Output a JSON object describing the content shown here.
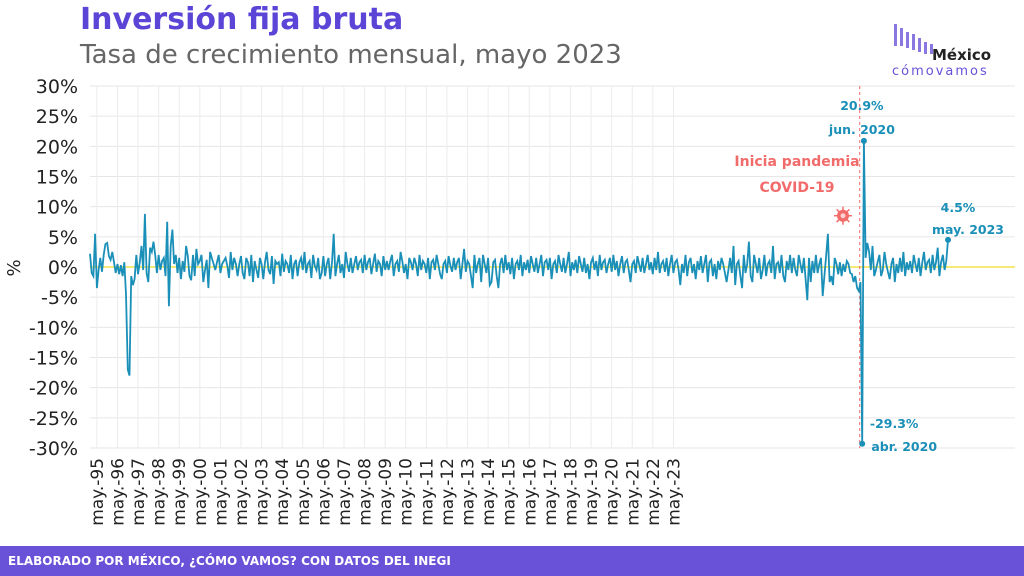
{
  "header": {
    "title": "Inversión fija bruta",
    "subtitle": "Tasa de crecimiento mensual, mayo 2023"
  },
  "logo": {
    "line1": "México",
    "line2": "cómovamos"
  },
  "footer": {
    "text": "ELABORADO POR MÉXICO, ¿CÓMO VAMOS? CON DATOS DEL INEGI"
  },
  "colors": {
    "title": "#5b45d6",
    "line": "#1a8fb8",
    "zero_line": "#f2e24a",
    "pandemic": "#f26b6b",
    "footer": "#6a52d8"
  },
  "chart_data": {
    "type": "line",
    "ylabel": "%",
    "xlabel": "",
    "ylim": [
      -30,
      30
    ],
    "y_ticks": [
      "30%",
      "25%",
      "20%",
      "15%",
      "10%",
      "5%",
      "0%",
      "-5%",
      "-10%",
      "-15%",
      "-20%",
      "-25%",
      "-30%"
    ],
    "x_tick_labels": [
      "may.-95",
      "may.-96",
      "may.-97",
      "may.-98",
      "may.-99",
      "may.-00",
      "may.-01",
      "may.-02",
      "may.-03",
      "may.-04",
      "may.-05",
      "may.-06",
      "may.-07",
      "may.-08",
      "may.-09",
      "may.-10",
      "may.-11",
      "may.-12",
      "may.-13",
      "may.-14",
      "may.-15",
      "may.-16",
      "may.-17",
      "may.-18",
      "may.-19",
      "may.-20",
      "may.-21",
      "may.-22",
      "may.-23"
    ],
    "grid": true,
    "series": [
      {
        "values": [
          2.2,
          -1.0,
          -1.5,
          5.5,
          -3.5,
          -0.5,
          1.5,
          -0.8,
          2.0,
          3.8,
          4.0,
          1.8,
          1.2,
          2.5,
          0.8,
          -1.0,
          0.5,
          -1.2,
          0.3,
          -1.5,
          0.8,
          -4.5,
          -17.0,
          -18.0,
          -1.5,
          -3.0,
          -2.0,
          2.0,
          -1.2,
          0.8,
          3.5,
          -0.5,
          8.8,
          -1.0,
          -2.5,
          3.2,
          2.5,
          4.2,
          2.0,
          -1.0,
          2.0,
          -0.5,
          1.0,
          1.5,
          -1.5,
          7.5,
          -6.5,
          3.5,
          6.2,
          0.5,
          2.0,
          -1.0,
          1.5,
          -2.0,
          1.0,
          -0.8,
          3.5,
          1.8,
          -1.5,
          -2.2,
          2.0,
          -1.5,
          3.0,
          0.5,
          1.0,
          2.0,
          -2.5,
          -0.5,
          1.2,
          -3.5,
          2.5,
          1.5,
          0.5,
          -0.5,
          0.8,
          2.0,
          -1.0,
          0.5,
          1.0,
          1.5,
          0.2,
          -1.8,
          2.5,
          -0.5,
          1.5,
          0.5,
          -1.5,
          0.5,
          1.8,
          -1.0,
          -2.0,
          1.5,
          0.8,
          -1.5,
          2.0,
          -2.5,
          1.0,
          -0.5,
          -1.8,
          1.5,
          0.5,
          -2.0,
          0.8,
          2.5,
          -0.5,
          -1.2,
          1.8,
          -2.8,
          1.0,
          0.5,
          0.8,
          -1.5,
          2.2,
          -0.8,
          1.0,
          0.5,
          -1.0,
          2.0,
          -2.0,
          0.5,
          1.2,
          -1.5,
          0.8,
          1.5,
          -0.5,
          2.5,
          -1.0,
          0.5,
          1.0,
          -1.8,
          2.0,
          0.2,
          -0.5,
          1.5,
          -2.0,
          -1.0,
          1.8,
          -1.5,
          0.5,
          1.5,
          -2.0,
          0.8,
          5.5,
          -1.5,
          0.5,
          2.0,
          -1.0,
          0.5,
          -1.8,
          2.5,
          0.5,
          -0.8,
          1.5,
          -1.0,
          0.5,
          1.8,
          -0.5,
          0.8,
          1.2,
          -1.0,
          2.0,
          -0.5,
          0.8,
          1.5,
          -1.2,
          0.5,
          2.2,
          -0.8,
          1.0,
          0.5,
          -1.5,
          1.8,
          -0.5,
          1.0,
          -0.5,
          1.0,
          2.0,
          -1.5,
          0.5,
          1.0,
          -0.8,
          2.5,
          1.0,
          -1.0,
          0.5,
          -2.0,
          1.5,
          0.8,
          -0.5,
          1.5,
          0.5,
          -1.5,
          2.0,
          -0.5,
          1.0,
          0.5,
          -1.0,
          1.5,
          -2.0,
          0.8,
          1.2,
          -0.5,
          2.0,
          0.5,
          -1.2,
          -2.0,
          0.5,
          1.0,
          -1.0,
          1.8,
          0.2,
          -0.8,
          1.5,
          -0.5,
          0.8,
          1.5,
          -2.0,
          0.5,
          3.0,
          -0.8,
          1.0,
          0.5,
          -1.5,
          -3.5,
          2.0,
          -1.0,
          0.5,
          1.5,
          -2.5,
          2.0,
          0.5,
          -1.0,
          1.5,
          -3.0,
          -2.5,
          0.8,
          1.2,
          -1.5,
          -3.5,
          0.5,
          1.5,
          -1.0,
          2.0,
          -0.5,
          0.8,
          -1.2,
          1.5,
          -2.0,
          0.5,
          1.0,
          -0.5,
          2.0,
          -1.5,
          0.8,
          -0.5,
          1.2,
          -1.0,
          1.8,
          0.5,
          -0.8,
          1.5,
          -1.0,
          0.5,
          2.0,
          -1.5,
          0.8,
          1.2,
          -0.5,
          1.5,
          -2.0,
          0.5,
          1.0,
          -1.0,
          2.0,
          0.5,
          -0.8,
          1.5,
          -1.0,
          0.5,
          2.5,
          -1.5,
          0.8,
          -0.5,
          1.2,
          -1.0,
          1.8,
          0.5,
          -0.8,
          1.5,
          -1.0,
          0.5,
          -2.0,
          0.8,
          1.5,
          -0.5,
          1.0,
          -1.5,
          2.0,
          -0.5,
          0.8,
          1.2,
          -1.0,
          0.5,
          1.5,
          -0.8,
          2.0,
          -0.5,
          1.0,
          -1.5,
          0.5,
          1.8,
          -1.0,
          0.8,
          1.2,
          -0.5,
          -2.5,
          0.5,
          1.0,
          -1.0,
          1.8,
          0.5,
          -0.8,
          1.5,
          -1.0,
          0.5,
          2.0,
          -0.5,
          0.8,
          -1.2,
          1.5,
          -0.5,
          2.5,
          -1.0,
          0.5,
          1.0,
          -0.8,
          1.5,
          -1.5,
          0.5,
          2.0,
          -1.0,
          0.8,
          1.2,
          -0.5,
          -3.0,
          0.5,
          -1.0,
          2.0,
          -1.5,
          0.8,
          1.5,
          -1.0,
          0.5,
          -2.0,
          1.0,
          -0.5,
          1.8,
          -1.0,
          0.5,
          2.0,
          -2.5,
          0.8,
          1.2,
          -1.5,
          0.5,
          -2.0,
          1.0,
          -0.5,
          1.5,
          0.5,
          -1.0,
          -2.5,
          -0.5,
          1.5,
          -1.0,
          3.5,
          -3.0,
          0.5,
          1.0,
          -1.5,
          -3.5,
          2.0,
          -1.0,
          0.5,
          4.2,
          -1.5,
          -2.5,
          2.0,
          0.5,
          -1.0,
          1.5,
          -2.0,
          -0.5,
          2.0,
          -1.5,
          0.5,
          1.0,
          -1.0,
          3.5,
          -2.0,
          0.5,
          0.8,
          -1.0,
          2.0,
          -1.5,
          -2.5,
          1.0,
          -0.5,
          2.0,
          -1.0,
          1.5,
          -0.5,
          -1.5,
          2.0,
          0.5,
          -1.0,
          1.5,
          -2.0,
          -5.5,
          1.5,
          -2.5,
          1.0,
          -1.0,
          2.0,
          -1.0,
          0.5,
          1.5,
          -4.8,
          -1.5,
          2.0,
          5.5,
          -2.5,
          -1.5,
          -3.0,
          1.5,
          0.5,
          -1.2,
          0.8,
          -1.5,
          0.5,
          -0.8,
          1.0,
          0.5,
          -1.0,
          -1.2,
          -2.5,
          -1.5,
          -3.5,
          -4.0,
          -2.5,
          -29.3,
          20.9,
          1.5,
          4.0,
          2.5,
          -0.5,
          3.5,
          -1.5,
          -0.5,
          0.8,
          2.0,
          -1.5,
          -0.5,
          2.5,
          0.5,
          -0.8,
          -2.0,
          0.5,
          1.5,
          -2.5,
          0.5,
          -1.0,
          1.5,
          -0.8,
          2.5,
          -1.5,
          0.8,
          -0.5,
          1.0,
          -1.0,
          2.0,
          0.5,
          -0.8,
          1.5,
          -1.5,
          0.8,
          2.5,
          -0.5,
          0.8,
          1.2,
          -1.0,
          2.0,
          -0.5,
          0.8,
          3.2,
          -1.5,
          0.8,
          2.0,
          -0.5,
          1.0,
          4.5
        ]
      }
    ],
    "annotations": [
      {
        "line1": "20.9%",
        "line2": "jun. 2020",
        "value": 20.9
      },
      {
        "line1": "-29.3%",
        "line2": "abr. 2020",
        "value": -29.3
      },
      {
        "line1": "4.5%",
        "line2": "may. 2023",
        "value": 4.5
      },
      {
        "line1": "Inicia pandemia",
        "line2": "COVID-19"
      }
    ]
  }
}
